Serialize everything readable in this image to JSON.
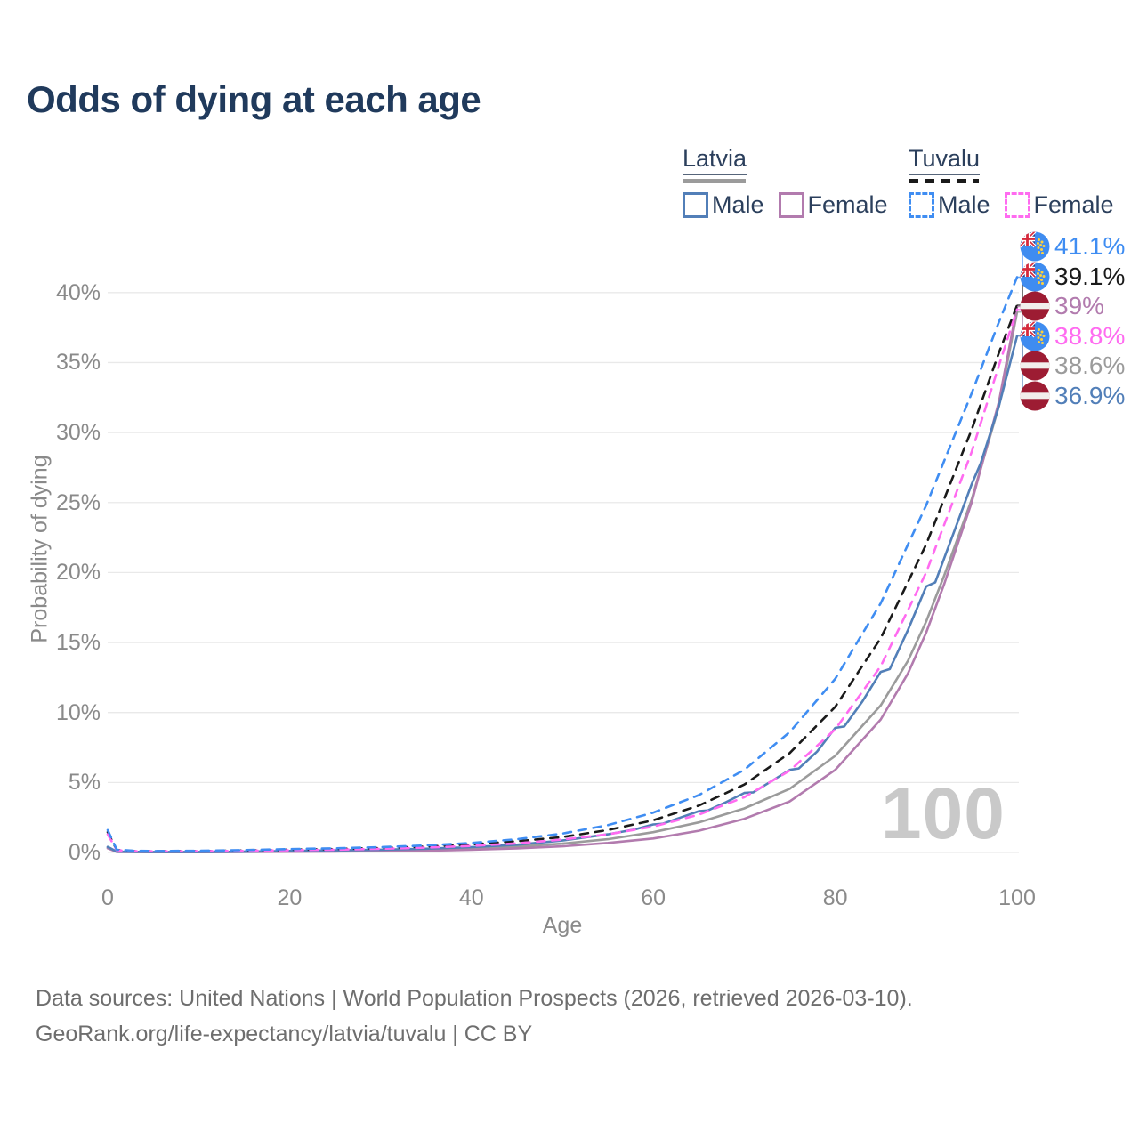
{
  "title": "Odds of dying at each age",
  "legend": {
    "groups": [
      {
        "label": "Latvia",
        "line_style": "solid",
        "line_color": "#9b9b9b",
        "items": [
          {
            "label": "Male",
            "color": "#527fb8",
            "dashed": false
          },
          {
            "label": "Female",
            "color": "#b27bae",
            "dashed": false
          }
        ]
      },
      {
        "label": "Tuvalu",
        "line_style": "dashed",
        "line_color": "#1a1a1a",
        "items": [
          {
            "label": "Male",
            "color": "#3f8df2",
            "dashed": true
          },
          {
            "label": "Female",
            "color": "#ff6bf0",
            "dashed": true
          }
        ]
      }
    ]
  },
  "chart_data": {
    "type": "line",
    "title": "Odds of dying at each age",
    "xlabel": "Age",
    "ylabel": "Probability of dying",
    "unit": "%",
    "xlim": [
      0,
      100
    ],
    "ylim": [
      0,
      42
    ],
    "grid": "horizontal",
    "x_ticks": [
      0,
      20,
      40,
      60,
      80,
      100
    ],
    "x_tick_labels": [
      "0",
      "20",
      "40",
      "60",
      "80",
      "100"
    ],
    "y_ticks_percent": [
      0,
      5,
      10,
      15,
      20,
      25,
      30,
      35,
      40
    ],
    "y_tick_labels": [
      "0%",
      "5%",
      "10%",
      "15%",
      "20%",
      "25%",
      "30%",
      "35%",
      "40%"
    ],
    "series": [
      {
        "id": "latvia_both",
        "name": "Latvia",
        "color": "#9b9b9b",
        "dashed": false,
        "end_value_pct": 38.6,
        "points": [
          [
            0,
            0.35
          ],
          [
            1,
            0.05
          ],
          [
            5,
            0.025
          ],
          [
            10,
            0.025
          ],
          [
            15,
            0.05
          ],
          [
            20,
            0.08
          ],
          [
            25,
            0.11
          ],
          [
            30,
            0.14
          ],
          [
            35,
            0.19
          ],
          [
            40,
            0.28
          ],
          [
            45,
            0.42
          ],
          [
            50,
            0.63
          ],
          [
            55,
            0.95
          ],
          [
            60,
            1.45
          ],
          [
            65,
            2.15
          ],
          [
            70,
            3.15
          ],
          [
            75,
            4.55
          ],
          [
            80,
            6.9
          ],
          [
            85,
            10.5
          ],
          [
            88,
            13.7
          ],
          [
            90,
            16.5
          ],
          [
            92,
            19.8
          ],
          [
            95,
            25.2
          ],
          [
            98,
            31.9
          ],
          [
            100,
            38.6
          ]
        ]
      },
      {
        "id": "latvia_female",
        "name": "Latvia Female",
        "color": "#b27bae",
        "dashed": false,
        "end_value_pct": 39.0,
        "points": [
          [
            0,
            0.3
          ],
          [
            1,
            0.04
          ],
          [
            5,
            0.02
          ],
          [
            10,
            0.02
          ],
          [
            15,
            0.035
          ],
          [
            20,
            0.05
          ],
          [
            25,
            0.07
          ],
          [
            30,
            0.09
          ],
          [
            35,
            0.13
          ],
          [
            40,
            0.19
          ],
          [
            45,
            0.29
          ],
          [
            50,
            0.44
          ],
          [
            55,
            0.68
          ],
          [
            60,
            1.0
          ],
          [
            65,
            1.55
          ],
          [
            70,
            2.4
          ],
          [
            75,
            3.65
          ],
          [
            80,
            5.9
          ],
          [
            85,
            9.5
          ],
          [
            88,
            12.8
          ],
          [
            90,
            15.7
          ],
          [
            92,
            19.2
          ],
          [
            95,
            25.0
          ],
          [
            98,
            32.2
          ],
          [
            100,
            39.0
          ]
        ]
      },
      {
        "id": "latvia_male",
        "name": "Latvia Male",
        "color": "#527fb8",
        "dashed": false,
        "end_value_pct": 36.9,
        "points": [
          [
            0,
            0.4
          ],
          [
            1,
            0.06
          ],
          [
            5,
            0.03
          ],
          [
            10,
            0.03
          ],
          [
            15,
            0.06
          ],
          [
            20,
            0.11
          ],
          [
            25,
            0.15
          ],
          [
            30,
            0.2
          ],
          [
            35,
            0.27
          ],
          [
            40,
            0.38
          ],
          [
            45,
            0.55
          ],
          [
            50,
            0.85
          ],
          [
            55,
            1.3
          ],
          [
            58,
            1.65
          ],
          [
            60,
            2.0
          ],
          [
            61,
            2.05
          ],
          [
            63,
            2.5
          ],
          [
            65,
            2.95
          ],
          [
            66,
            3.0
          ],
          [
            68,
            3.6
          ],
          [
            70,
            4.25
          ],
          [
            71,
            4.3
          ],
          [
            73,
            5.1
          ],
          [
            75,
            5.9
          ],
          [
            76,
            6.0
          ],
          [
            78,
            7.2
          ],
          [
            80,
            8.9
          ],
          [
            81,
            9.0
          ],
          [
            83,
            10.8
          ],
          [
            85,
            12.9
          ],
          [
            86,
            13.1
          ],
          [
            88,
            15.9
          ],
          [
            90,
            19.0
          ],
          [
            91,
            19.3
          ],
          [
            93,
            22.8
          ],
          [
            95,
            26.3
          ],
          [
            96,
            27.8
          ],
          [
            98,
            31.9
          ],
          [
            100,
            36.9
          ]
        ]
      },
      {
        "id": "tuvalu_both",
        "name": "Tuvalu",
        "color": "#1a1a1a",
        "dashed": true,
        "end_value_pct": 39.1,
        "points": [
          [
            0,
            1.45
          ],
          [
            1,
            0.18
          ],
          [
            3,
            0.1
          ],
          [
            5,
            0.09
          ],
          [
            10,
            0.1
          ],
          [
            15,
            0.14
          ],
          [
            20,
            0.2
          ],
          [
            25,
            0.25
          ],
          [
            30,
            0.32
          ],
          [
            35,
            0.42
          ],
          [
            40,
            0.57
          ],
          [
            45,
            0.8
          ],
          [
            50,
            1.1
          ],
          [
            55,
            1.6
          ],
          [
            60,
            2.3
          ],
          [
            65,
            3.35
          ],
          [
            70,
            4.85
          ],
          [
            75,
            7.1
          ],
          [
            80,
            10.4
          ],
          [
            85,
            15.3
          ],
          [
            90,
            22.0
          ],
          [
            95,
            30.2
          ],
          [
            98,
            35.7
          ],
          [
            100,
            39.1
          ]
        ]
      },
      {
        "id": "tuvalu_female",
        "name": "Tuvalu Female",
        "color": "#ff6bf0",
        "dashed": true,
        "end_value_pct": 38.8,
        "points": [
          [
            0,
            1.3
          ],
          [
            1,
            0.16
          ],
          [
            3,
            0.09
          ],
          [
            5,
            0.08
          ],
          [
            10,
            0.09
          ],
          [
            15,
            0.12
          ],
          [
            20,
            0.16
          ],
          [
            25,
            0.2
          ],
          [
            30,
            0.26
          ],
          [
            35,
            0.35
          ],
          [
            40,
            0.47
          ],
          [
            45,
            0.65
          ],
          [
            50,
            0.92
          ],
          [
            55,
            1.3
          ],
          [
            60,
            1.85
          ],
          [
            65,
            2.7
          ],
          [
            70,
            3.95
          ],
          [
            75,
            5.85
          ],
          [
            80,
            8.8
          ],
          [
            85,
            13.3
          ],
          [
            90,
            20.0
          ],
          [
            95,
            28.6
          ],
          [
            98,
            34.8
          ],
          [
            100,
            38.8
          ]
        ]
      },
      {
        "id": "tuvalu_male",
        "name": "Tuvalu Male",
        "color": "#3f8df2",
        "dashed": true,
        "end_value_pct": 41.1,
        "points": [
          [
            0,
            1.6
          ],
          [
            1,
            0.2
          ],
          [
            3,
            0.12
          ],
          [
            5,
            0.1
          ],
          [
            10,
            0.12
          ],
          [
            15,
            0.17
          ],
          [
            20,
            0.24
          ],
          [
            25,
            0.3
          ],
          [
            30,
            0.38
          ],
          [
            35,
            0.5
          ],
          [
            40,
            0.68
          ],
          [
            45,
            0.95
          ],
          [
            50,
            1.35
          ],
          [
            55,
            1.95
          ],
          [
            60,
            2.85
          ],
          [
            65,
            4.1
          ],
          [
            70,
            5.9
          ],
          [
            75,
            8.6
          ],
          [
            80,
            12.4
          ],
          [
            85,
            17.8
          ],
          [
            90,
            24.8
          ],
          [
            95,
            32.8
          ],
          [
            98,
            37.9
          ],
          [
            100,
            41.1
          ]
        ]
      }
    ]
  },
  "end_labels": [
    {
      "text": "41.1%",
      "series": "tuvalu_male",
      "flag": "tuvalu",
      "color": "#3f8df2"
    },
    {
      "text": "39.1%",
      "series": "tuvalu_both",
      "flag": "tuvalu",
      "color": "#1a1a1a"
    },
    {
      "text": "39%",
      "series": "latvia_female",
      "flag": "latvia",
      "color": "#b27bae"
    },
    {
      "text": "38.8%",
      "series": "tuvalu_female",
      "flag": "tuvalu",
      "color": "#ff6bf0"
    },
    {
      "text": "38.6%",
      "series": "latvia_both",
      "flag": "latvia",
      "color": "#9b9b9b"
    },
    {
      "text": "36.9%",
      "series": "latvia_male",
      "flag": "latvia",
      "color": "#527fb8"
    }
  ],
  "hover_age_indicator": "100",
  "footer": {
    "line1": "Data sources: United Nations | World Population Prospects (2026, retrieved 2026-03-10).",
    "line2": "GeoRank.org/life-expectancy/latvia/tuvalu | CC BY"
  },
  "flag_colors": {
    "tuvalu_blue": "#3f8cf0",
    "latvia_red": "#9d1c33",
    "union_navy": "#2c3f8e",
    "union_red": "#d6293b",
    "star_yellow": "#ffd23c",
    "stripe_white": "#f2eeec"
  }
}
